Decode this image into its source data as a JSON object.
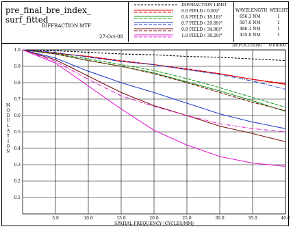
{
  "header": {
    "title_line1": "pre_final_bre_index_",
    "title_line2": "surf_fitted",
    "subtitle": "DIFFRACTION MTF",
    "date": "27-Oct-08",
    "legend_title": "DIFFRACTION LIMIT",
    "fields": [
      {
        "label": "0.0  FIELD (   0.00)°",
        "color": "#e00000"
      },
      {
        "label": "0.4  FIELD (  18.18)°",
        "color": "#1a9a1a"
      },
      {
        "label": "0.7  FIELD (  29.89)°",
        "color": "#1f3fd0"
      },
      {
        "label": "0.9  FIELD (  34.90)°",
        "color": "#7a1010"
      },
      {
        "label": "1.0  FIELD (  38.29)°",
        "color": "#e020d0"
      }
    ],
    "wavelength_header": "WAVELENGTH",
    "weight_header": "WEIGHT",
    "wavelengths": [
      {
        "wl": "656.3 NM",
        "w": "1"
      },
      {
        "wl": "587.6 NM",
        "w": "1"
      },
      {
        "wl": "486.1 NM",
        "w": "1"
      },
      {
        "wl": "435.8 NM",
        "w": "1"
      }
    ],
    "defocusing_label": "DEFOCUSING",
    "defocusing_value": "0.00000"
  },
  "chart_data": {
    "type": "line",
    "xlabel": "SPATIAL FREQUENCY (CYCLES/MM)",
    "ylabel": "MODULATION",
    "xlim": [
      0,
      40
    ],
    "ylim": [
      0,
      1.0
    ],
    "x_ticks": [
      "5.0",
      "10.0",
      "15.0",
      "20.0",
      "25.0",
      "30.0",
      "35.0",
      "40.0"
    ],
    "y_ticks": [
      "0.1",
      "0.2",
      "0.3",
      "0.4",
      "0.5",
      "0.6",
      "0.7",
      "0.8",
      "0.9",
      "1.0"
    ],
    "grid": true,
    "series": [
      {
        "name": "DIFFRACTION LIMIT",
        "color": "#000000",
        "dash": "3,2",
        "x": [
          0,
          5,
          10,
          15,
          20,
          25,
          30,
          35,
          40
        ],
        "y": [
          1.0,
          0.995,
          0.985,
          0.975,
          0.97,
          0.96,
          0.955,
          0.945,
          0.935
        ]
      },
      {
        "name": "0.0 FIELD T",
        "color": "#e00000",
        "dash": "",
        "x": [
          0,
          5,
          10,
          15,
          20,
          25,
          30,
          35,
          40
        ],
        "y": [
          1.0,
          0.98,
          0.96,
          0.93,
          0.91,
          0.88,
          0.855,
          0.82,
          0.79
        ]
      },
      {
        "name": "0.0 FIELD S",
        "color": "#e00000",
        "dash": "5,2",
        "x": [
          0,
          5,
          10,
          15,
          20,
          25,
          30,
          35,
          40
        ],
        "y": [
          1.0,
          0.98,
          0.96,
          0.935,
          0.91,
          0.885,
          0.855,
          0.82,
          0.795
        ]
      },
      {
        "name": "0.4 FIELD T",
        "color": "#1a9a1a",
        "dash": "",
        "x": [
          0,
          5,
          10,
          15,
          20,
          25,
          30,
          35,
          40
        ],
        "y": [
          1.0,
          0.975,
          0.935,
          0.9,
          0.86,
          0.805,
          0.75,
          0.69,
          0.625
        ]
      },
      {
        "name": "0.4 FIELD S",
        "color": "#1a9a1a",
        "dash": "5,2",
        "x": [
          0,
          5,
          10,
          15,
          20,
          25,
          30,
          35,
          40
        ],
        "y": [
          1.0,
          0.978,
          0.945,
          0.91,
          0.875,
          0.825,
          0.77,
          0.71,
          0.65
        ]
      },
      {
        "name": "0.7 FIELD T",
        "color": "#1f3fd0",
        "dash": "",
        "x": [
          0,
          5,
          10,
          15,
          20,
          25,
          30,
          35,
          40
        ],
        "y": [
          1.0,
          0.95,
          0.87,
          0.8,
          0.74,
          0.675,
          0.61,
          0.56,
          0.52
        ]
      },
      {
        "name": "0.7 FIELD S",
        "color": "#1f3fd0",
        "dash": "6,2,1,2",
        "x": [
          0,
          5,
          10,
          15,
          20,
          25,
          30,
          35,
          40
        ],
        "y": [
          1.0,
          0.985,
          0.955,
          0.93,
          0.91,
          0.88,
          0.85,
          0.81,
          0.76
        ]
      },
      {
        "name": "0.9 FIELD T",
        "color": "#7a1010",
        "dash": "",
        "x": [
          0,
          5,
          10,
          15,
          20,
          25,
          30,
          35,
          40
        ],
        "y": [
          1.0,
          0.94,
          0.84,
          0.74,
          0.66,
          0.6,
          0.535,
          0.49,
          0.44
        ]
      },
      {
        "name": "0.9 FIELD S",
        "color": "#7a1010",
        "dash": "5,2",
        "x": [
          0,
          5,
          10,
          15,
          20,
          25,
          30,
          35,
          40
        ],
        "y": [
          1.0,
          0.975,
          0.935,
          0.9,
          0.855,
          0.8,
          0.74,
          0.68,
          0.63
        ]
      },
      {
        "name": "1.0 FIELD T",
        "color": "#e020d0",
        "dash": "",
        "x": [
          0,
          5,
          10,
          15,
          20,
          25,
          30,
          35,
          40
        ],
        "y": [
          1.0,
          0.92,
          0.78,
          0.64,
          0.51,
          0.42,
          0.35,
          0.31,
          0.29
        ]
      },
      {
        "name": "1.0 FIELD S",
        "color": "#e020d0",
        "dash": "6,2,1,2",
        "x": [
          0,
          5,
          10,
          15,
          20,
          25,
          30,
          35,
          40
        ],
        "y": [
          1.0,
          0.93,
          0.82,
          0.72,
          0.655,
          0.6,
          0.55,
          0.52,
          0.5
        ]
      }
    ]
  }
}
